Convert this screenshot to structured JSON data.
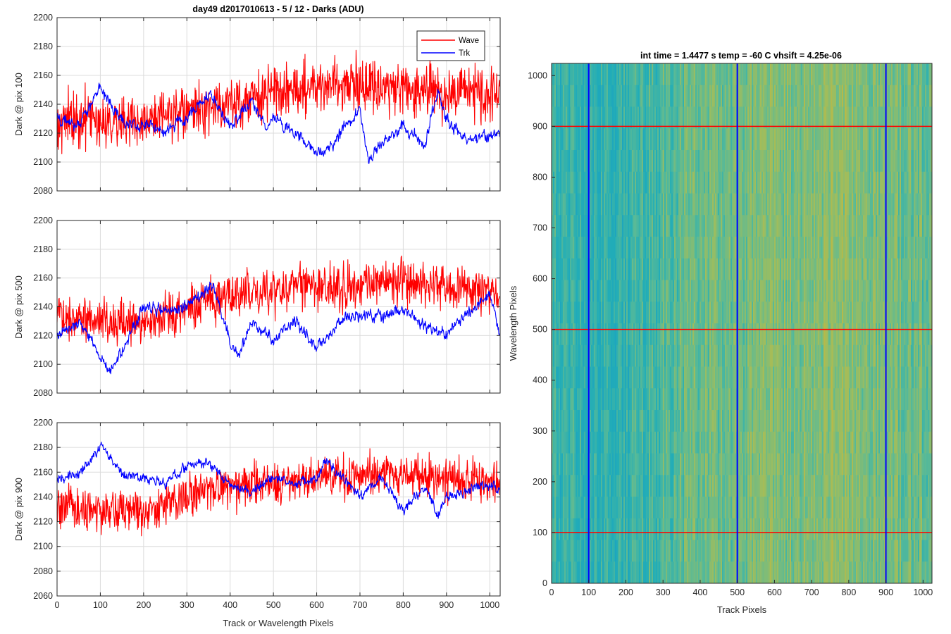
{
  "figure_title": "day49 d2017010613 - 5 / 12 - Darks (ADU)",
  "colors": {
    "wave": "#ff0000",
    "trk": "#0000ff",
    "grid": "#dcdcdc",
    "axis": "#262626"
  },
  "chart_data": [
    {
      "type": "line",
      "title": "day49 d2017010613 - 5 / 12 - Darks (ADU)",
      "xlabel": "",
      "ylabel": "Dark @ pix 100",
      "xlim": [
        0,
        1024
      ],
      "ylim": [
        2080,
        2200
      ],
      "xticks": [
        0,
        100,
        200,
        300,
        400,
        500,
        600,
        700,
        800,
        900,
        1000
      ],
      "yticks": [
        2080,
        2100,
        2120,
        2140,
        2160,
        2180,
        2200
      ],
      "grid": true,
      "legend": {
        "placement": "top-right",
        "entries": [
          "Wave",
          "Trk"
        ]
      },
      "series": [
        {
          "name": "Wave",
          "color": "#ff0000",
          "noise": 13,
          "x": [
            0,
            100,
            200,
            300,
            400,
            500,
            600,
            700,
            800,
            900,
            1024
          ],
          "y": [
            2128,
            2130,
            2127,
            2134,
            2140,
            2148,
            2153,
            2155,
            2150,
            2148,
            2147
          ]
        },
        {
          "name": "Trk",
          "color": "#0000ff",
          "noise": 5,
          "x": [
            0,
            50,
            100,
            150,
            200,
            250,
            300,
            350,
            400,
            450,
            480,
            500,
            550,
            600,
            620,
            650,
            700,
            720,
            750,
            800,
            850,
            880,
            900,
            950,
            1000,
            1024
          ],
          "y": [
            2130,
            2125,
            2152,
            2128,
            2125,
            2122,
            2130,
            2148,
            2125,
            2142,
            2125,
            2130,
            2120,
            2107,
            2108,
            2118,
            2137,
            2100,
            2112,
            2125,
            2112,
            2150,
            2130,
            2115,
            2118,
            2120
          ]
        }
      ]
    },
    {
      "type": "line",
      "title": "",
      "xlabel": "",
      "ylabel": "Dark @ pix 500",
      "xlim": [
        0,
        1024
      ],
      "ylim": [
        2080,
        2200
      ],
      "xticks": [
        0,
        100,
        200,
        300,
        400,
        500,
        600,
        700,
        800,
        900,
        1000
      ],
      "yticks": [
        2080,
        2100,
        2120,
        2140,
        2160,
        2180,
        2200
      ],
      "grid": true,
      "series": [
        {
          "name": "Wave",
          "color": "#ff0000",
          "noise": 11,
          "x": [
            0,
            100,
            200,
            300,
            400,
            500,
            600,
            700,
            800,
            900,
            1024
          ],
          "y": [
            2135,
            2132,
            2128,
            2140,
            2148,
            2152,
            2155,
            2155,
            2160,
            2152,
            2150
          ]
        },
        {
          "name": "Trk",
          "color": "#0000ff",
          "noise": 5,
          "x": [
            0,
            50,
            100,
            120,
            150,
            200,
            250,
            300,
            360,
            400,
            420,
            450,
            500,
            550,
            600,
            650,
            700,
            750,
            800,
            850,
            900,
            950,
            1000,
            1024
          ],
          "y": [
            2120,
            2130,
            2105,
            2097,
            2108,
            2140,
            2138,
            2140,
            2155,
            2115,
            2105,
            2130,
            2118,
            2130,
            2112,
            2130,
            2135,
            2133,
            2140,
            2125,
            2122,
            2135,
            2150,
            2120
          ]
        }
      ]
    },
    {
      "type": "line",
      "title": "",
      "xlabel": "Track or Wavelength Pixels",
      "ylabel": "Dark @ pix 900",
      "xlim": [
        0,
        1024
      ],
      "ylim": [
        2060,
        2200
      ],
      "xticks": [
        0,
        100,
        200,
        300,
        400,
        500,
        600,
        700,
        800,
        900,
        1000
      ],
      "yticks": [
        2060,
        2080,
        2100,
        2120,
        2140,
        2160,
        2180,
        2200
      ],
      "grid": true,
      "series": [
        {
          "name": "Wave",
          "color": "#ff0000",
          "noise": 12,
          "x": [
            0,
            100,
            200,
            300,
            400,
            500,
            600,
            700,
            800,
            900,
            1024
          ],
          "y": [
            2130,
            2128,
            2130,
            2140,
            2148,
            2150,
            2155,
            2158,
            2158,
            2155,
            2152
          ]
        },
        {
          "name": "Trk",
          "color": "#0000ff",
          "noise": 5,
          "x": [
            0,
            50,
            100,
            120,
            150,
            200,
            250,
            300,
            350,
            400,
            450,
            500,
            550,
            600,
            620,
            650,
            700,
            750,
            800,
            850,
            880,
            900,
            950,
            1000,
            1024
          ],
          "y": [
            2155,
            2158,
            2180,
            2175,
            2158,
            2155,
            2150,
            2165,
            2168,
            2150,
            2145,
            2155,
            2150,
            2155,
            2170,
            2160,
            2140,
            2155,
            2130,
            2148,
            2125,
            2140,
            2145,
            2150,
            2148
          ]
        }
      ]
    },
    {
      "type": "heatmap",
      "title": "int time = 1.4477 s    temp = -60 C    vhsift = 4.25e-06",
      "xlabel": "Track Pixels",
      "ylabel": "Wavelength Pixels",
      "xlim": [
        0,
        1024
      ],
      "ylim": [
        0,
        1024
      ],
      "xticks": [
        0,
        100,
        200,
        300,
        400,
        500,
        600,
        700,
        800,
        900,
        1000
      ],
      "yticks": [
        0,
        100,
        200,
        300,
        400,
        500,
        600,
        700,
        800,
        900,
        1000
      ],
      "colormap": [
        "#1aa0c4",
        "#22adb7",
        "#5aba96",
        "#9ebd5e",
        "#c6b73c"
      ],
      "column_profile": {
        "x": [
          0,
          100,
          200,
          300,
          400,
          500,
          600,
          700,
          800,
          900,
          1024
        ],
        "level": [
          0.35,
          0.3,
          0.32,
          0.45,
          0.55,
          0.58,
          0.62,
          0.66,
          0.7,
          0.6,
          0.55
        ]
      },
      "vlines": [
        100,
        500,
        900
      ],
      "hlines": [
        100,
        500,
        900
      ]
    }
  ]
}
